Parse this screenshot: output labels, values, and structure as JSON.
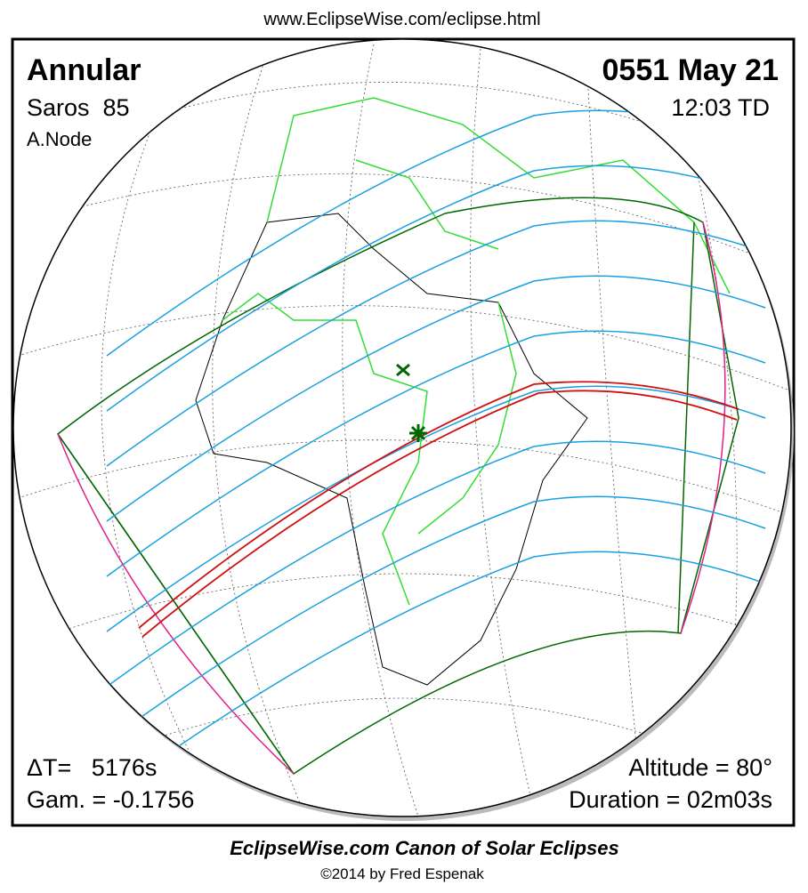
{
  "header": {
    "url": "www.EclipseWise.com/eclipse.html"
  },
  "eclipse": {
    "type": "Annular",
    "saros": "Saros  85",
    "node": "A.Node",
    "date": "0551 May 21",
    "time": "12:03 TD",
    "delta_t": "ΔT=   5176s",
    "gamma": "Gam. = -0.1756",
    "altitude": "Altitude = 80°",
    "duration": "Duration = 02m03s"
  },
  "footer": {
    "title": "EclipseWise.com Canon of Solar Eclipses",
    "copyright": "©2014 by Fred Espenak"
  }
}
